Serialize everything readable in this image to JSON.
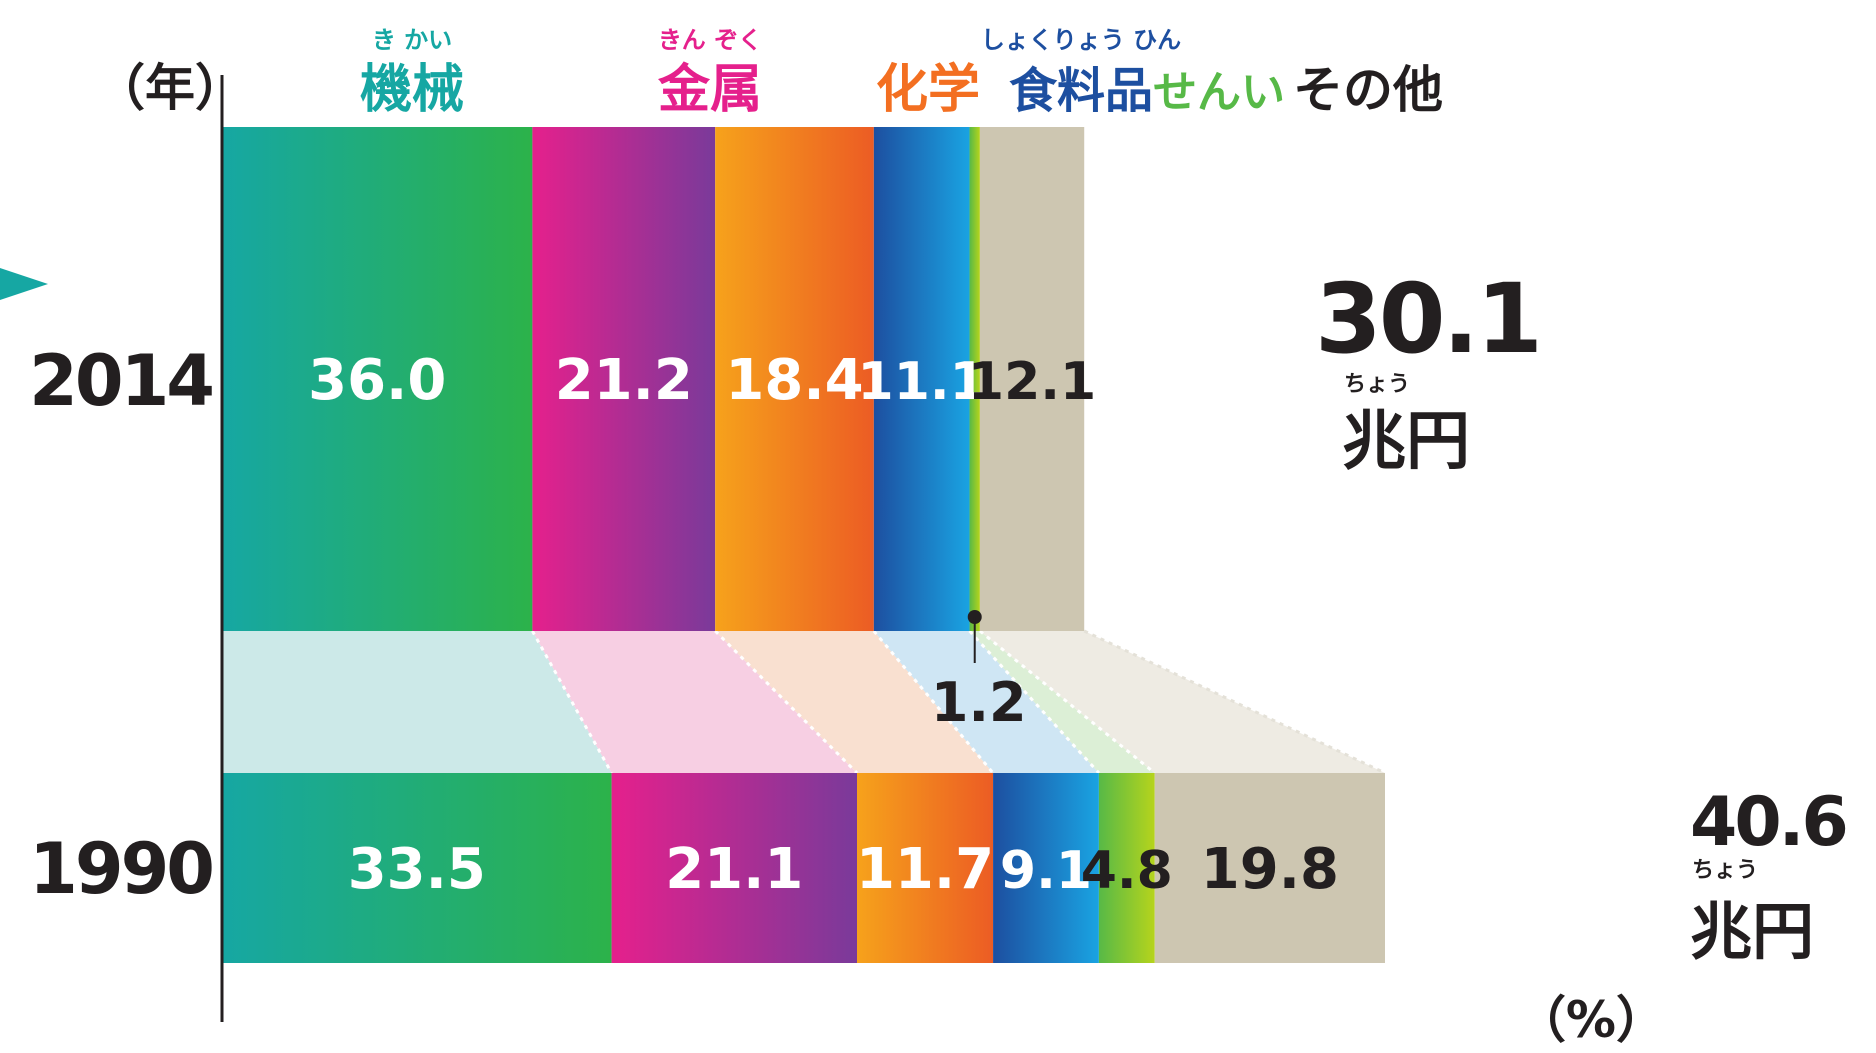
{
  "chart_data": {
    "type": "bar",
    "orientation": "horizontal",
    "stacked": true,
    "scaled_by_total": true,
    "y_axis_unit": "（年）",
    "x_axis_unit": "（%）",
    "categories": [
      "2014",
      "1990"
    ],
    "series": [
      {
        "name": "機械",
        "ruby": "き かい",
        "color": "#16a7a3",
        "color_to": "#2cb24a",
        "label_color": "#ffffff",
        "values": [
          36.0,
          33.5
        ]
      },
      {
        "name": "金属",
        "ruby": "きん ぞく",
        "color": "#e5208c",
        "color_to": "#7a3a9a",
        "label_color": "#ffffff",
        "values": [
          21.2,
          21.1
        ]
      },
      {
        "name": "化学",
        "ruby": "",
        "color": "#f6a21b",
        "color_to": "#ec5c24",
        "label_color": "#ffffff",
        "values": [
          18.4,
          11.7
        ]
      },
      {
        "name": "食料品",
        "ruby": "しょくりょう ひん",
        "color": "#1d4fa0",
        "color_to": "#1aa3e2",
        "label_color": "#ffffff",
        "values": [
          11.1,
          9.1
        ]
      },
      {
        "name": "せんい",
        "ruby": "",
        "color": "#57b947",
        "color_to": "#b6d41c",
        "label_color": "#231f20",
        "values": [
          1.2,
          4.8
        ]
      },
      {
        "name": "その他",
        "ruby": "",
        "color": "#cdc6b1",
        "color_to": "#cdc6b1",
        "label_color": "#231f20",
        "values": [
          12.1,
          19.8
        ]
      }
    ],
    "totals": [
      {
        "value": "30.1",
        "unit": "兆円",
        "ruby": "ちょう"
      },
      {
        "value": "40.6",
        "unit": "兆円",
        "ruby": "ちょう"
      }
    ],
    "series_label_colors": [
      "#16a7a3",
      "#e5208c",
      "#f36f21",
      "#1d4fa0",
      "#57b947",
      "#231f20"
    ],
    "connector_colors": [
      "#cce9e8",
      "#f7cfe3",
      "#f9e0d0",
      "#cfe6f4",
      "#dcefd6",
      "#eeebe3"
    ],
    "title": "",
    "xlabel": "",
    "ylabel": ""
  }
}
